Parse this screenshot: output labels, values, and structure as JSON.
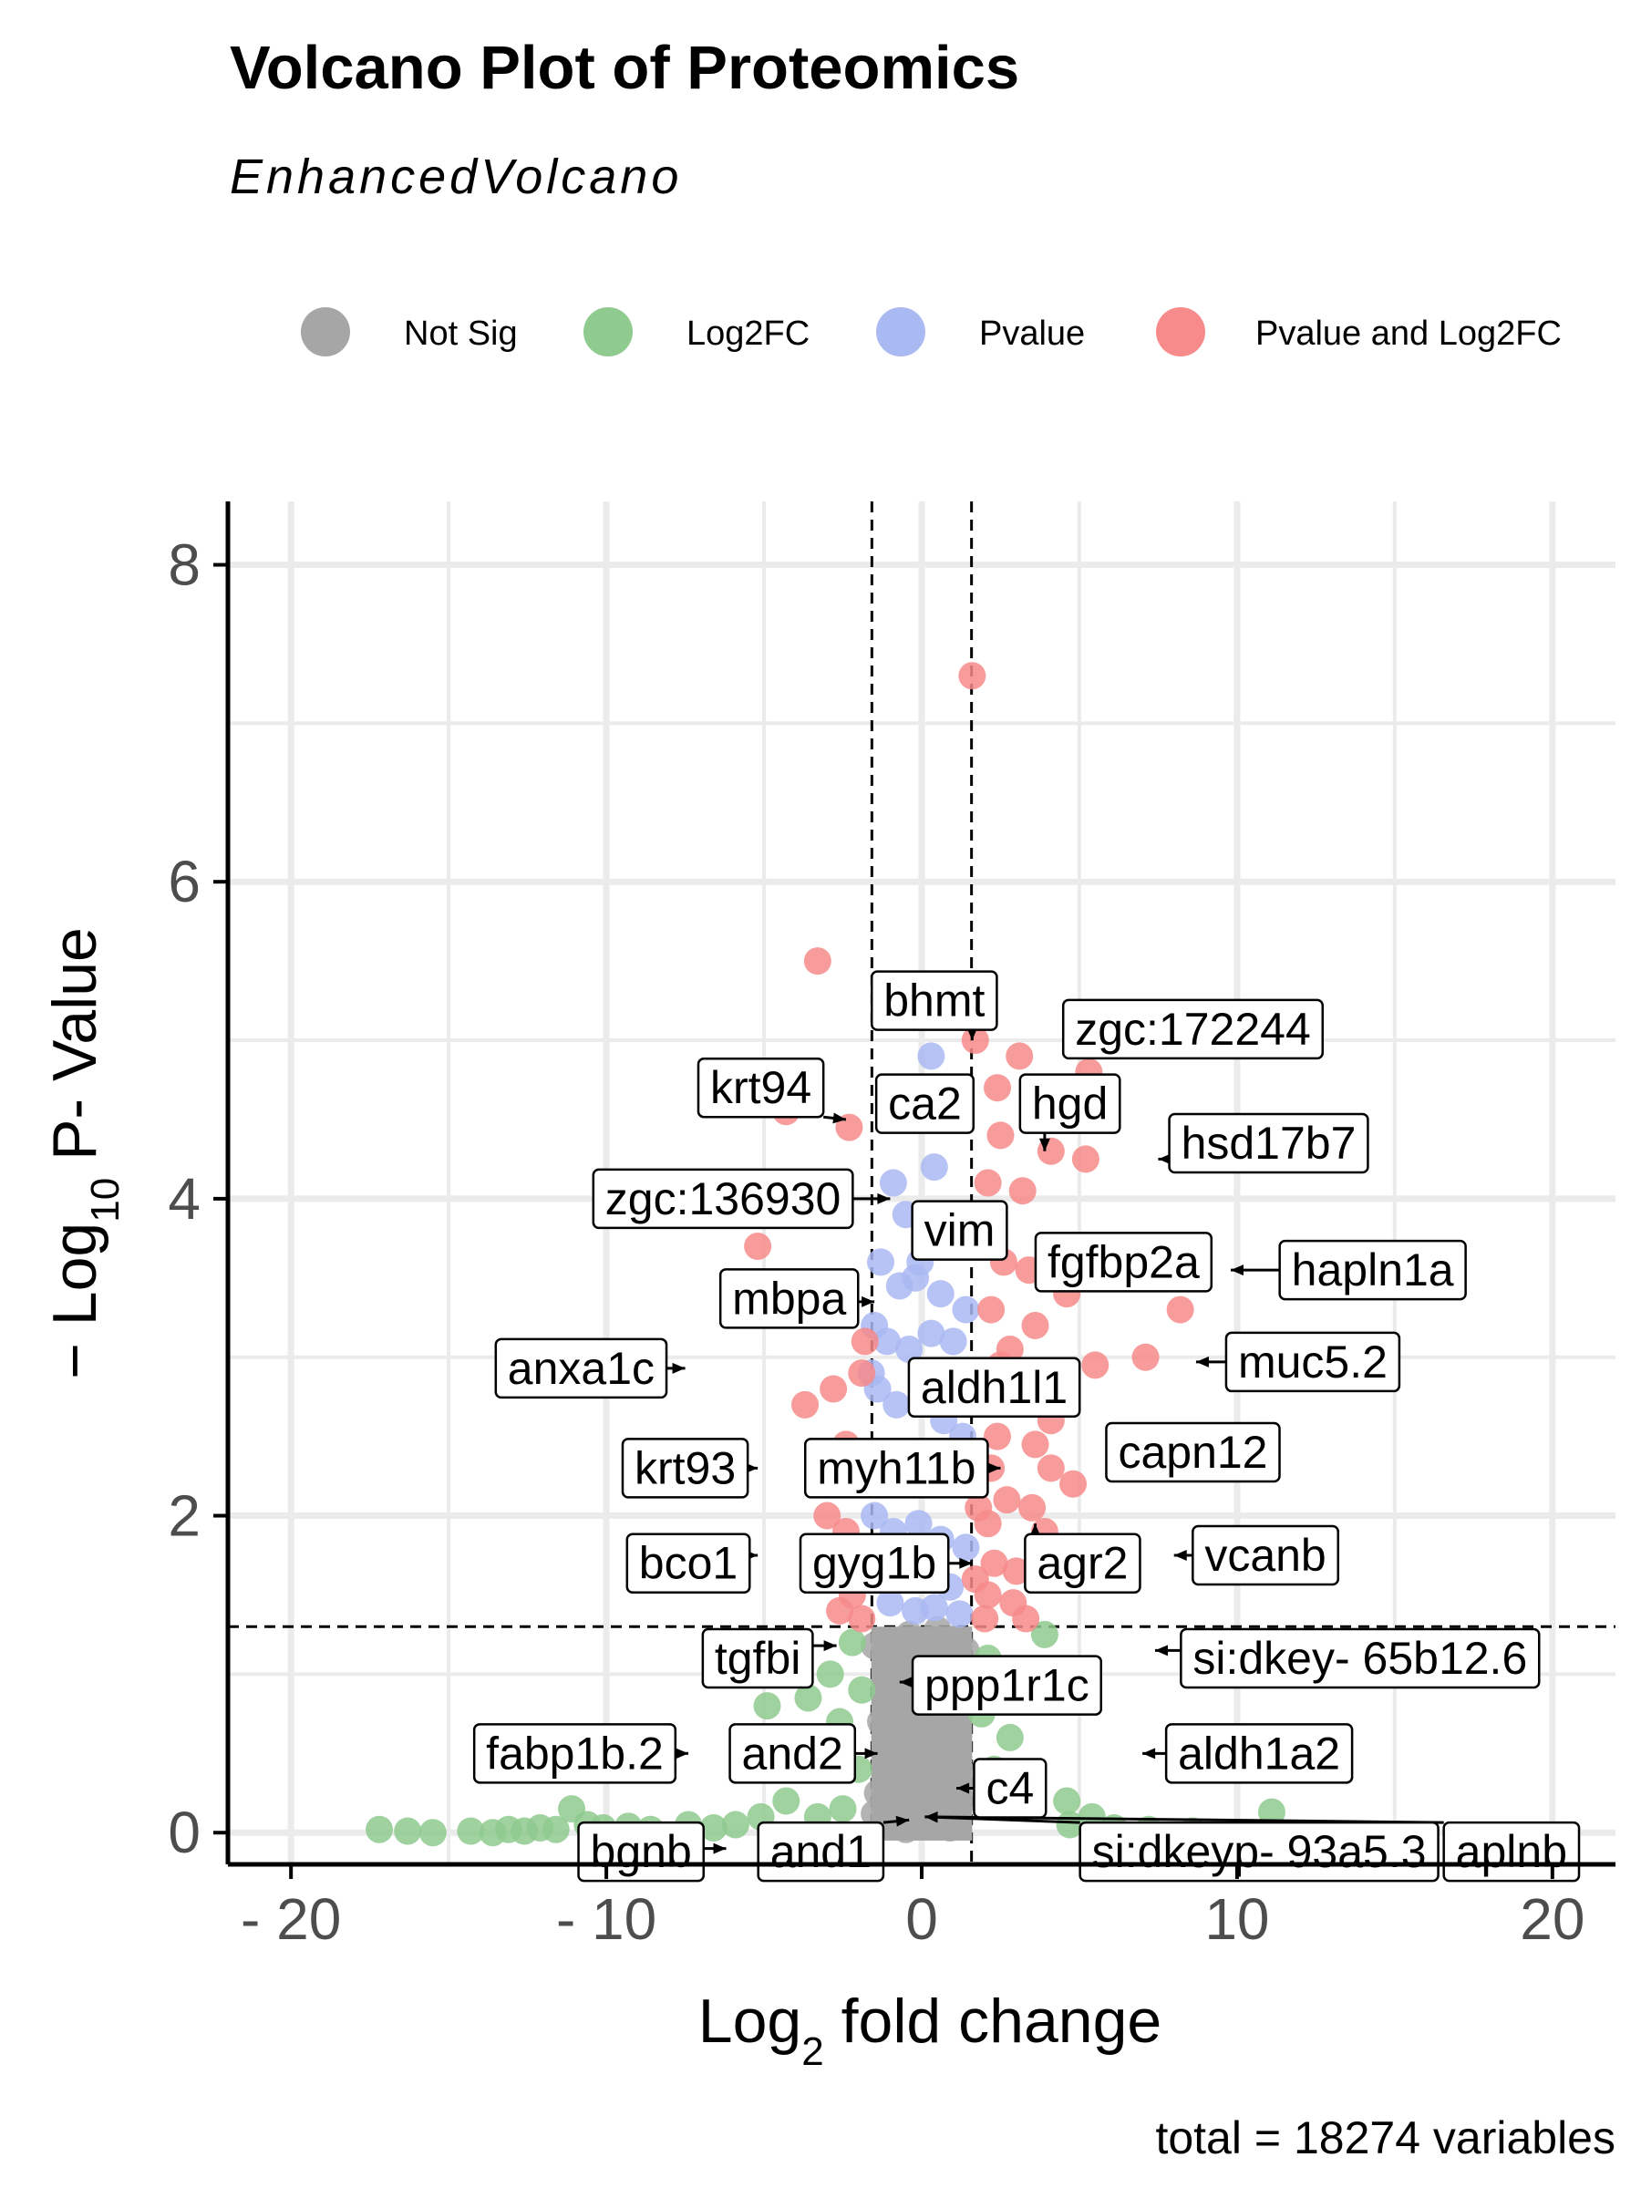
{
  "chart_data": {
    "type": "scatter",
    "title": "Volcano Plot of Proteomics",
    "subtitle": "EnhancedVolcano",
    "xlabel_prefix": "Log",
    "xlabel_sub": "2",
    "xlabel_suffix": " fold change",
    "ylabel_prefix": "− Log",
    "ylabel_sub": "10",
    "ylabel_suffix": " P- Value",
    "caption": "total = 18274 variables",
    "xlim": [
      -22,
      22
    ],
    "ylim": [
      -0.2,
      8.4
    ],
    "x_ticks": [
      -20,
      -10,
      0,
      10,
      20
    ],
    "x_tick_labels": [
      "- 20",
      "- 10",
      "0",
      "10",
      "20"
    ],
    "y_ticks": [
      0,
      2,
      4,
      6,
      8
    ],
    "y_tick_labels": [
      "0",
      "2",
      "4",
      "6",
      "8"
    ],
    "fc_cutoff": 1.58,
    "p_cutoff_log10": 1.3,
    "grid": true,
    "legend_position": "top",
    "legend": [
      {
        "key": "ns",
        "label": "Not Sig",
        "color": "#a6a6a6"
      },
      {
        "key": "fc",
        "label": "Log2FC",
        "color": "#8fca8f"
      },
      {
        "key": "p",
        "label": "Pvalue",
        "color": "#a9b9f2"
      },
      {
        "key": "both",
        "label": "Pvalue and Log2FC",
        "color": "#f78a8a"
      }
    ],
    "series": [
      {
        "name": "Not Sig",
        "points": [
          [
            -1.2,
            0.05
          ],
          [
            -0.8,
            0.1
          ],
          [
            -0.5,
            0.02
          ],
          [
            0,
            0.08
          ],
          [
            0.4,
            0.15
          ],
          [
            0.9,
            0.03
          ],
          [
            1.3,
            0.2
          ],
          [
            -1.4,
            0.25
          ],
          [
            -1.0,
            0.4
          ],
          [
            -0.3,
            0.35
          ],
          [
            0.2,
            0.5
          ],
          [
            0.7,
            0.45
          ],
          [
            1.1,
            0.6
          ],
          [
            -1.3,
            0.7
          ],
          [
            -0.6,
            0.65
          ],
          [
            0.1,
            0.75
          ],
          [
            0.6,
            0.8
          ],
          [
            1.2,
            0.9
          ],
          [
            -1.1,
            0.95
          ],
          [
            -0.2,
            1.0
          ],
          [
            0.3,
            1.05
          ],
          [
            0.8,
            1.1
          ],
          [
            1.4,
            1.15
          ],
          [
            -0.9,
            1.2
          ],
          [
            -0.4,
            1.25
          ],
          [
            0.5,
            1.28
          ],
          [
            1.0,
            1.22
          ],
          [
            -1.5,
            1.18
          ],
          [
            -0.7,
            0.55
          ],
          [
            0.0,
            0.3
          ],
          [
            1.5,
            0.35
          ],
          [
            -1.5,
            0.12
          ],
          [
            0.95,
            0.85
          ],
          [
            -0.15,
            0.6
          ]
        ]
      },
      {
        "name": "Log2FC",
        "points": [
          [
            -17.2,
            0.02
          ],
          [
            -16.3,
            0.01
          ],
          [
            -15.5,
            0.0
          ],
          [
            -14.3,
            0.01
          ],
          [
            -13.6,
            0.0
          ],
          [
            -13.1,
            0.02
          ],
          [
            -12.6,
            0.01
          ],
          [
            -12.1,
            0.03
          ],
          [
            -11.6,
            0.02
          ],
          [
            -11.1,
            0.15
          ],
          [
            -10.6,
            0.05
          ],
          [
            -10.1,
            0.03
          ],
          [
            -9.3,
            0.04
          ],
          [
            -8.6,
            0.02
          ],
          [
            -7.4,
            0.05
          ],
          [
            -6.6,
            0.03
          ],
          [
            -5.9,
            0.05
          ],
          [
            -5.1,
            0.1
          ],
          [
            -4.9,
            0.8
          ],
          [
            -3.6,
            0.85
          ],
          [
            -2.9,
            1.0
          ],
          [
            -2.6,
            0.7
          ],
          [
            -2.2,
            1.2
          ],
          [
            -2.0,
            0.4
          ],
          [
            -1.9,
            0.9
          ],
          [
            -4.3,
            0.2
          ],
          [
            -3.3,
            0.1
          ],
          [
            -2.5,
            0.15
          ],
          [
            2.1,
            1.1
          ],
          [
            2.6,
            0.9
          ],
          [
            3.2,
            1.0
          ],
          [
            3.9,
            1.25
          ],
          [
            4.6,
            0.2
          ],
          [
            4.7,
            0.05
          ],
          [
            5.4,
            0.1
          ],
          [
            6.1,
            0.03
          ],
          [
            7.2,
            0.02
          ],
          [
            8.6,
            0.01
          ],
          [
            11.1,
            0.13
          ],
          [
            2.3,
            0.4
          ],
          [
            2.8,
            0.6
          ],
          [
            3.5,
            0.3
          ],
          [
            1.9,
            0.75
          ],
          [
            2.05,
            0.25
          ]
        ]
      },
      {
        "name": "Pvalue",
        "points": [
          [
            0.3,
            4.9
          ],
          [
            -0.9,
            4.1
          ],
          [
            -0.5,
            3.9
          ],
          [
            0.4,
            4.2
          ],
          [
            0.8,
            3.9
          ],
          [
            1.2,
            3.8
          ],
          [
            -1.3,
            3.6
          ],
          [
            -0.7,
            3.45
          ],
          [
            -0.2,
            3.5
          ],
          [
            0.6,
            3.4
          ],
          [
            1.4,
            3.3
          ],
          [
            -1.5,
            3.2
          ],
          [
            -1.1,
            3.1
          ],
          [
            -0.4,
            3.05
          ],
          [
            0.3,
            3.15
          ],
          [
            1.0,
            3.1
          ],
          [
            -1.4,
            2.8
          ],
          [
            -0.8,
            2.7
          ],
          [
            0.0,
            2.75
          ],
          [
            0.7,
            2.6
          ],
          [
            1.3,
            2.5
          ],
          [
            -1.2,
            2.4
          ],
          [
            -0.3,
            2.35
          ],
          [
            0.5,
            2.3
          ],
          [
            1.1,
            2.2
          ],
          [
            -1.5,
            2.0
          ],
          [
            -0.9,
            1.9
          ],
          [
            -0.1,
            1.95
          ],
          [
            0.6,
            1.85
          ],
          [
            1.4,
            1.8
          ],
          [
            -1.3,
            1.7
          ],
          [
            -0.6,
            1.6
          ],
          [
            0.2,
            1.65
          ],
          [
            0.9,
            1.55
          ],
          [
            -1.0,
            1.45
          ],
          [
            -0.2,
            1.4
          ],
          [
            0.4,
            1.42
          ],
          [
            1.2,
            1.38
          ],
          [
            -1.6,
            2.9
          ],
          [
            -0.05,
            3.6
          ]
        ]
      },
      {
        "name": "Pvalue and Log2FC",
        "points": [
          [
            1.6,
            7.3
          ],
          [
            -3.3,
            5.5
          ],
          [
            1.7,
            5.0
          ],
          [
            3.1,
            4.9
          ],
          [
            5.3,
            4.8
          ],
          [
            2.4,
            4.7
          ],
          [
            -4.3,
            4.55
          ],
          [
            -2.3,
            4.45
          ],
          [
            2.5,
            4.4
          ],
          [
            4.1,
            4.3
          ],
          [
            5.2,
            4.25
          ],
          [
            2.1,
            4.1
          ],
          [
            3.2,
            4.05
          ],
          [
            -5.2,
            3.7
          ],
          [
            2.6,
            3.6
          ],
          [
            3.4,
            3.55
          ],
          [
            4.6,
            3.4
          ],
          [
            8.2,
            3.3
          ],
          [
            2.2,
            3.3
          ],
          [
            3.6,
            3.2
          ],
          [
            -1.8,
            3.1
          ],
          [
            2.8,
            3.05
          ],
          [
            5.5,
            2.95
          ],
          [
            7.1,
            3.0
          ],
          [
            -2.8,
            2.8
          ],
          [
            -1.9,
            2.9
          ],
          [
            2.0,
            2.85
          ],
          [
            3.8,
            2.7
          ],
          [
            -3.7,
            2.7
          ],
          [
            -2.4,
            2.45
          ],
          [
            4.1,
            2.6
          ],
          [
            2.4,
            2.5
          ],
          [
            3.6,
            2.45
          ],
          [
            2.2,
            2.3
          ],
          [
            4.1,
            2.3
          ],
          [
            2.7,
            2.1
          ],
          [
            3.5,
            2.05
          ],
          [
            4.8,
            2.2
          ],
          [
            2.1,
            1.95
          ],
          [
            3.9,
            1.9
          ],
          [
            -2.4,
            1.9
          ],
          [
            -3.0,
            2.0
          ],
          [
            2.3,
            1.7
          ],
          [
            3.0,
            1.65
          ],
          [
            2.1,
            1.5
          ],
          [
            2.9,
            1.45
          ],
          [
            -2.2,
            1.5
          ],
          [
            -2.6,
            1.4
          ],
          [
            2.0,
            1.35
          ],
          [
            3.3,
            1.35
          ],
          [
            -1.9,
            1.35
          ],
          [
            1.7,
            1.6
          ],
          [
            1.8,
            2.05
          ],
          [
            2.5,
            2.95
          ],
          [
            4.5,
            2.75
          ]
        ]
      }
    ],
    "labels": [
      {
        "text": "bhmt",
        "bx": 0.4,
        "by": 5.25,
        "tx": 1.6,
        "ty": 5.0
      },
      {
        "text": "zgc:172244",
        "bx": 8.6,
        "by": 5.07,
        "tx": 5.8,
        "ty": 4.85
      },
      {
        "text": "krt94",
        "bx": -5.1,
        "by": 4.7,
        "tx": -2.4,
        "ty": 4.5
      },
      {
        "text": "ca2",
        "bx": 0.1,
        "by": 4.6,
        "tx": 0.0,
        "ty": 4.45
      },
      {
        "text": "hgd",
        "bx": 4.7,
        "by": 4.6,
        "tx": 3.9,
        "ty": 4.3
      },
      {
        "text": "zgc:136930",
        "bx": -6.3,
        "by": 4.0,
        "tx": -1.0,
        "ty": 4.0
      },
      {
        "text": "hsd17b7",
        "bx": 11.0,
        "by": 4.35,
        "tx": 7.5,
        "ty": 4.25
      },
      {
        "text": "vim",
        "bx": 1.2,
        "by": 3.8,
        "tx": 1.4,
        "ty": 3.7
      },
      {
        "text": "fgfbp2a",
        "bx": 6.4,
        "by": 3.6,
        "tx": 3.8,
        "ty": 3.45
      },
      {
        "text": "hapln1a",
        "bx": 14.3,
        "by": 3.55,
        "tx": 9.8,
        "ty": 3.55
      },
      {
        "text": "mbpa",
        "bx": -4.2,
        "by": 3.37,
        "tx": -1.5,
        "ty": 3.35
      },
      {
        "text": "anxa1c",
        "bx": -10.8,
        "by": 2.93,
        "tx": -7.5,
        "ty": 2.93
      },
      {
        "text": "muc5.2",
        "bx": 12.4,
        "by": 2.97,
        "tx": 8.7,
        "ty": 2.97
      },
      {
        "text": "aldh1l1",
        "bx": 2.3,
        "by": 2.81,
        "tx": 3.2,
        "ty": 2.6
      },
      {
        "text": "capn12",
        "bx": 8.6,
        "by": 2.4,
        "tx": 6.6,
        "ty": 2.6
      },
      {
        "text": "krt93",
        "bx": -7.5,
        "by": 2.3,
        "tx": -5.2,
        "ty": 2.3
      },
      {
        "text": "myh11b",
        "bx": -0.8,
        "by": 2.3,
        "tx": 2.5,
        "ty": 2.3
      },
      {
        "text": "bco1",
        "bx": -7.4,
        "by": 1.7,
        "tx": -5.2,
        "ty": 1.75
      },
      {
        "text": "gyg1b",
        "bx": -1.5,
        "by": 1.7,
        "tx": 1.6,
        "ty": 1.7
      },
      {
        "text": "agr2",
        "bx": 5.1,
        "by": 1.7,
        "tx": 3.6,
        "ty": 1.95
      },
      {
        "text": "vcanb",
        "bx": 10.9,
        "by": 1.75,
        "tx": 8.0,
        "ty": 1.75
      },
      {
        "text": "tgfbi",
        "bx": -5.2,
        "by": 1.1,
        "tx": -2.7,
        "ty": 1.18
      },
      {
        "text": "si:dkey- 65b12.6",
        "bx": 13.9,
        "by": 1.1,
        "tx": 7.4,
        "ty": 1.15
      },
      {
        "text": "ppp1r1c",
        "bx": 2.7,
        "by": 0.93,
        "tx": -0.7,
        "ty": 0.95
      },
      {
        "text": "fabp1b.2",
        "bx": -11.0,
        "by": 0.5,
        "tx": -7.4,
        "ty": 0.5
      },
      {
        "text": "and2",
        "bx": -4.1,
        "by": 0.5,
        "tx": -1.4,
        "ty": 0.5
      },
      {
        "text": "aldh1a2",
        "bx": 10.7,
        "by": 0.5,
        "tx": 7.0,
        "ty": 0.5
      },
      {
        "text": "c4",
        "bx": 2.8,
        "by": 0.28,
        "tx": 1.1,
        "ty": 0.28
      },
      {
        "text": "bgnb",
        "bx": -8.9,
        "by": -0.12,
        "tx": -6.2,
        "ty": -0.1
      },
      {
        "text": "and1",
        "bx": -3.2,
        "by": -0.12,
        "tx": -0.4,
        "ty": 0.08
      },
      {
        "text": "si:dkeyp- 93a5.3",
        "bx": 10.7,
        "by": -0.12,
        "tx": 0.1,
        "ty": 0.1
      },
      {
        "text": "aplnb",
        "bx": 18.7,
        "by": -0.12,
        "tx": 0.1,
        "ty": 0.1
      }
    ]
  }
}
